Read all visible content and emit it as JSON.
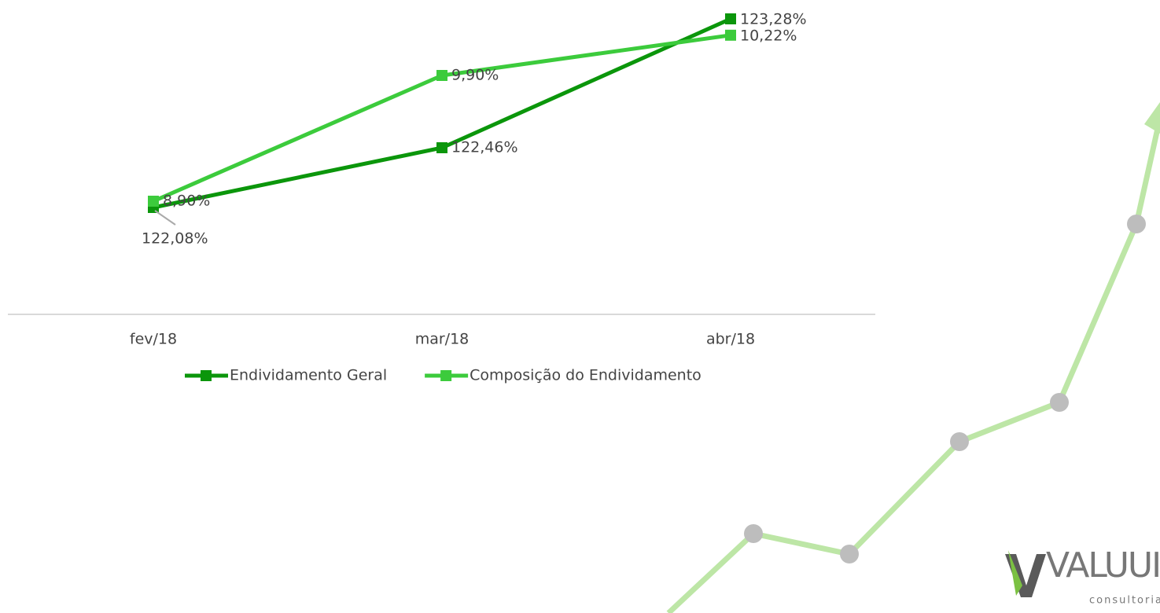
{
  "chart_data": {
    "type": "line",
    "categories": [
      "fev/18",
      "mar/18",
      "abr/18"
    ],
    "series": [
      {
        "name": "Endividamento Geral",
        "color": "#0b960b",
        "values": [
          122.08,
          122.46,
          123.28
        ],
        "value_labels": [
          "122,08%",
          "122,46%",
          "123,28%"
        ]
      },
      {
        "name": "Composição do Endividamento",
        "color": "#3ccb3c",
        "axis": "y2",
        "values": [
          8.9,
          9.9,
          10.22
        ],
        "value_labels": [
          "8,90%",
          "9,90%",
          "10,22%"
        ]
      }
    ],
    "ylim": [
      121.4,
      123.4
    ],
    "y2lim": [
      8.0,
      10.5
    ],
    "logo": {
      "name": "VALUUI",
      "tagline": "consultoria"
    }
  }
}
